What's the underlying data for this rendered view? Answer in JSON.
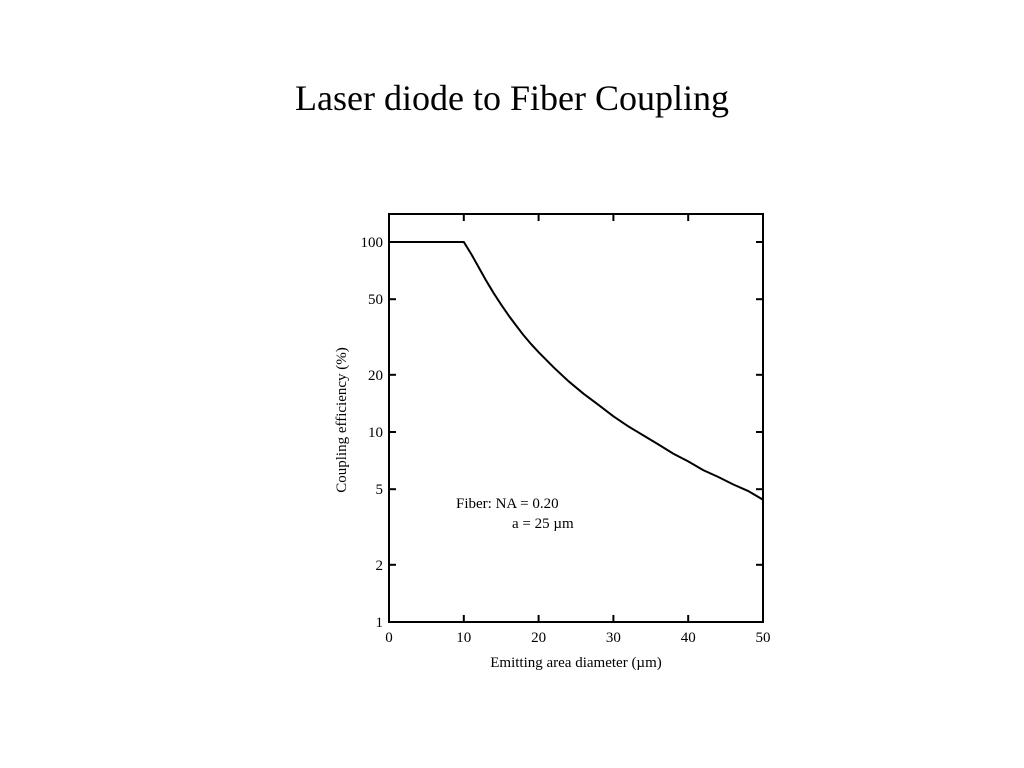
{
  "slide": {
    "title": "Laser diode to Fiber Coupling"
  },
  "chart_data": {
    "type": "line",
    "title": "",
    "xlabel": "Emitting area diameter (µm)",
    "ylabel": "Coupling efficiency (%)",
    "xlim": [
      0,
      50
    ],
    "ylim": [
      1,
      100
    ],
    "yscale": "log",
    "grid": false,
    "x_ticks": [
      0,
      10,
      20,
      30,
      40,
      50
    ],
    "y_ticks": [
      1,
      2,
      5,
      10,
      20,
      50,
      100
    ],
    "x_tick_labels": [
      "0",
      "10",
      "20",
      "30",
      "40",
      "50"
    ],
    "y_tick_labels": [
      "1",
      "2",
      "5",
      "10",
      "20",
      "50",
      "100"
    ],
    "annotation": [
      "Fiber: NA = 0.20",
      "a = 25 µm"
    ],
    "line_color": "#000000",
    "series": [
      {
        "x": [
          0,
          10,
          11,
          12,
          13,
          14,
          15,
          16,
          17,
          18,
          19,
          20,
          22,
          24,
          26,
          28,
          30,
          32,
          34,
          36,
          38,
          40,
          42,
          44,
          46,
          48,
          50
        ],
        "y": [
          100,
          100,
          86.4,
          73.4,
          62.6,
          53.8,
          46.8,
          41.0,
          36.3,
          32.3,
          29.0,
          26.3,
          21.9,
          18.5,
          15.9,
          13.9,
          12.1,
          10.7,
          9.6,
          8.6,
          7.7,
          7.0,
          6.3,
          5.8,
          5.3,
          4.9,
          4.4
        ]
      }
    ]
  }
}
